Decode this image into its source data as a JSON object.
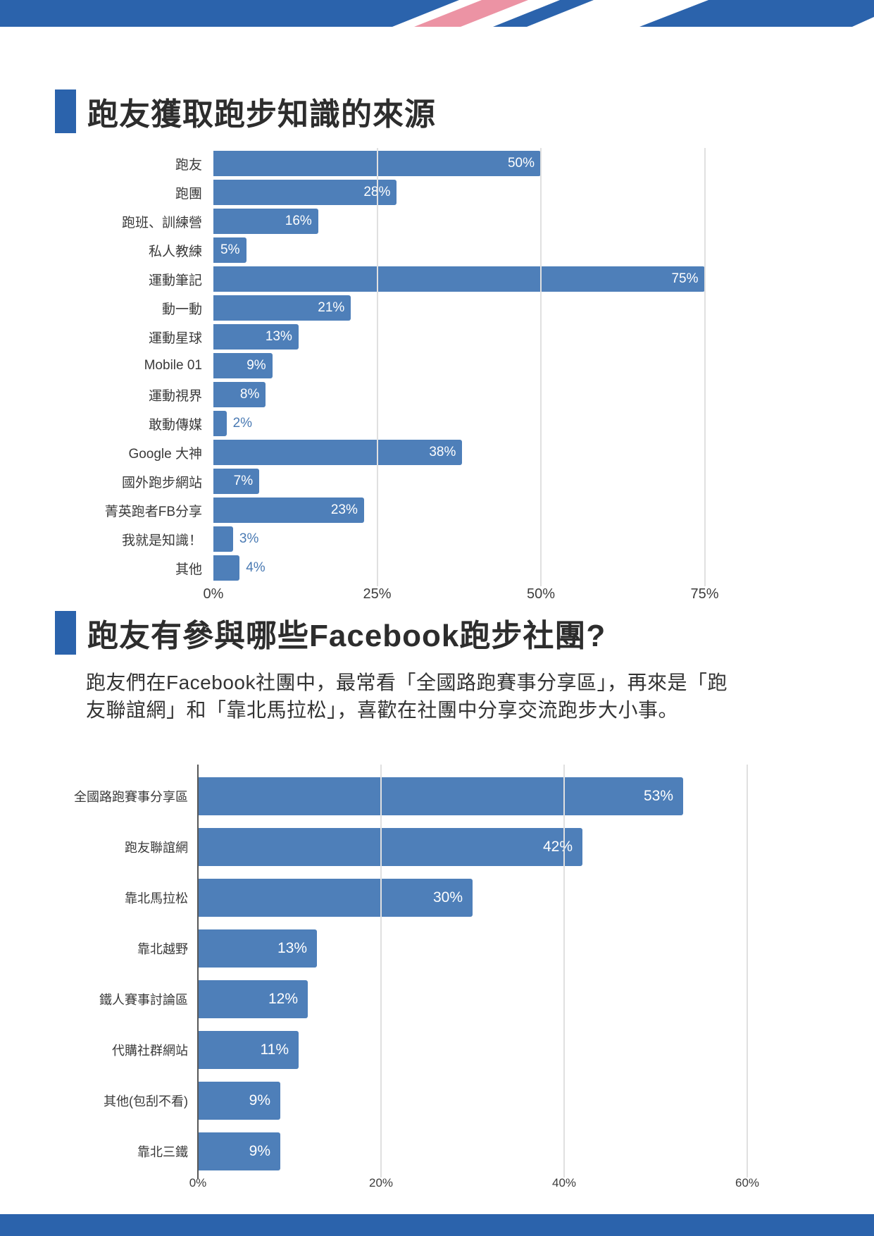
{
  "colors": {
    "accent_blue": "#2b63ac",
    "stripe_pink": "#ec93a4",
    "bar_blue": "#4e7fb9"
  },
  "section1": {
    "title": "跑友獲取跑步知識的來源"
  },
  "section2": {
    "title": "跑友有參與哪些Facebook跑步社團?",
    "description": "跑友們在Facebook社團中，最常看「全國路跑賽事分享區」，再來是「跑友聯誼網」和「靠北馬拉松」，喜歡在社團中分享交流跑步大小事。"
  },
  "chart_data": [
    {
      "type": "bar",
      "orientation": "horizontal",
      "title": "跑友獲取跑步知識的來源",
      "categories": [
        "跑友",
        "跑團",
        "跑班、訓練營",
        "私人教練",
        "運動筆記",
        "動一動",
        "運動星球",
        "Mobile 01",
        "運動視界",
        "敢動傳媒",
        "Google 大神",
        "國外跑步網站",
        "菁英跑者FB分享",
        "我就是知識！",
        "其他"
      ],
      "values": [
        50,
        28,
        16,
        5,
        75,
        21,
        13,
        9,
        8,
        2,
        38,
        7,
        23,
        3,
        4
      ],
      "value_suffix": "%",
      "xlabel": "",
      "ylabel": "",
      "xlim": [
        0,
        82
      ],
      "xticks": [
        "0%",
        "25%",
        "50%",
        "75%"
      ],
      "xtick_values": [
        0,
        25,
        50,
        75
      ],
      "grid": true,
      "legend": "none",
      "bar_color": "#4e7fb9",
      "value_label_position": "inside-right, outside for bars under 5%"
    },
    {
      "type": "bar",
      "orientation": "horizontal",
      "title": "跑友有參與哪些Facebook跑步社團?",
      "categories": [
        "全國路跑賽事分享區",
        "跑友聯誼網",
        "靠北馬拉松",
        "靠北越野",
        "鐵人賽事討論區",
        "代購社群網站",
        "其他(包刮不看)",
        "靠北三鐵"
      ],
      "values": [
        53,
        42,
        30,
        13,
        12,
        11,
        9,
        9
      ],
      "value_suffix": "%",
      "xlabel": "",
      "ylabel": "",
      "xlim": [
        0,
        63
      ],
      "xticks": [
        "0%",
        "20%",
        "40%",
        "60%"
      ],
      "xtick_values": [
        0,
        20,
        40,
        60
      ],
      "grid": true,
      "legend": "none",
      "bar_color": "#4e7fb9",
      "value_label_position": "inside-right"
    }
  ]
}
